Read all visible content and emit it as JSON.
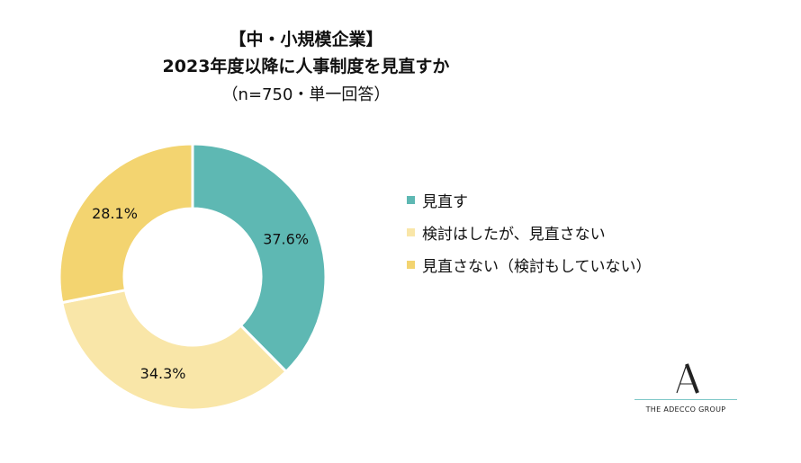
{
  "title": {
    "line1": "【中・小規模企業】",
    "line2": "2023年度以降に人事制度を見直すか",
    "line3": "（n=750・単一回答）"
  },
  "chart_data": {
    "type": "pie",
    "donut": true,
    "categories": [
      "見直す",
      "検討はしたが、見直さない",
      "見直さない（検討もしていない）"
    ],
    "values": [
      37.6,
      34.3,
      28.1
    ],
    "labels": [
      "37.6%",
      "34.3%",
      "28.1%"
    ],
    "colors": [
      "#5eb8b3",
      "#f9e6a8",
      "#f3d470"
    ],
    "legend_position": "right"
  },
  "logo": {
    "brand": "THE ADECCO GROUP",
    "mark": "A"
  }
}
